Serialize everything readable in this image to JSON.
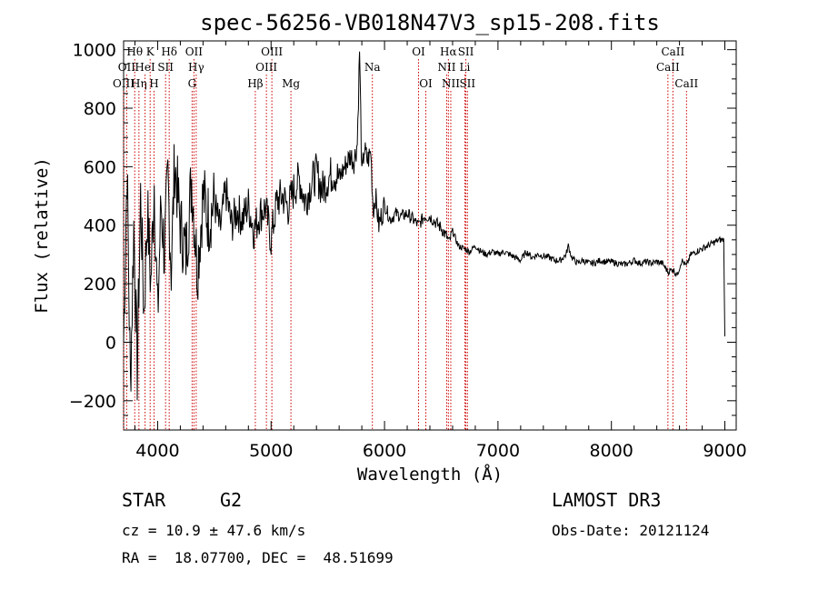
{
  "chart_data": {
    "type": "line",
    "title": "spec-56256-VB018N47V3_sp15-208.fits",
    "xlabel": "Wavelength (Å)",
    "ylabel": "Flux (relative)",
    "xlim": [
      3700,
      9100
    ],
    "ylim": [
      -300,
      1030
    ],
    "x_ticks": [
      4000,
      5000,
      6000,
      7000,
      8000,
      9000
    ],
    "y_ticks": [
      -200,
      0,
      200,
      400,
      600,
      800,
      1000
    ],
    "x_tick_labels": [
      "4000",
      "5000",
      "6000",
      "7000",
      "8000",
      "9000"
    ],
    "y_tick_labels": [
      "−200",
      "0",
      "200",
      "400",
      "600",
      "800",
      "1000"
    ],
    "line_color": "#000000",
    "marker_color": "#cc0000",
    "series": [
      {
        "name": "spectrum",
        "x": [
          3700,
          3730,
          3760,
          3790,
          3820,
          3850,
          3880,
          3910,
          3940,
          3970,
          4000,
          4030,
          4060,
          4090,
          4120,
          4150,
          4200,
          4250,
          4300,
          4350,
          4400,
          4450,
          4500,
          4550,
          4600,
          4650,
          4700,
          4750,
          4800,
          4850,
          4900,
          4950,
          5000,
          5050,
          5100,
          5150,
          5200,
          5250,
          5300,
          5350,
          5400,
          5450,
          5500,
          5550,
          5600,
          5650,
          5700,
          5730,
          5760,
          5780,
          5800,
          5820,
          5850,
          5880,
          5900,
          5920,
          5950,
          6000,
          6050,
          6100,
          6150,
          6200,
          6250,
          6300,
          6350,
          6400,
          6450,
          6500,
          6550,
          6570,
          6600,
          6650,
          6700,
          6750,
          6800,
          6850,
          6900,
          6950,
          7000,
          7050,
          7100,
          7150,
          7200,
          7250,
          7300,
          7350,
          7400,
          7450,
          7500,
          7550,
          7600,
          7620,
          7650,
          7700,
          7750,
          7800,
          7850,
          7900,
          7950,
          8000,
          8050,
          8100,
          8150,
          8200,
          8250,
          8300,
          8350,
          8400,
          8450,
          8500,
          8540,
          8580,
          8620,
          8660,
          8700,
          8750,
          8800,
          8850,
          8900,
          8950,
          8990,
          9000
        ],
        "y": [
          0,
          600,
          -150,
          400,
          -100,
          500,
          100,
          450,
          200,
          550,
          80,
          480,
          300,
          560,
          250,
          620,
          400,
          300,
          560,
          250,
          500,
          420,
          480,
          380,
          520,
          400,
          450,
          420,
          470,
          380,
          440,
          460,
          350,
          480,
          500,
          460,
          520,
          560,
          480,
          540,
          580,
          520,
          560,
          580,
          560,
          600,
          640,
          620,
          680,
          1000,
          560,
          660,
          620,
          650,
          450,
          500,
          400,
          470,
          420,
          440,
          430,
          440,
          420,
          400,
          430,
          430,
          410,
          390,
          360,
          340,
          380,
          330,
          320,
          310,
          330,
          310,
          300,
          310,
          300,
          310,
          300,
          290,
          280,
          310,
          290,
          300,
          295,
          290,
          280,
          280,
          300,
          330,
          290,
          270,
          280,
          270,
          270,
          280,
          275,
          275,
          270,
          265,
          270,
          280,
          270,
          275,
          270,
          275,
          270,
          240,
          250,
          230,
          280,
          260,
          300,
          310,
          320,
          330,
          340,
          350,
          350,
          20
        ]
      }
    ],
    "lines_top": [
      {
        "label": "Hθ",
        "wave": 3798
      },
      {
        "label": "K",
        "wave": 3934
      },
      {
        "label": "Hδ",
        "wave": 4102
      },
      {
        "label": "OII",
        "wave": 4320
      },
      {
        "label": "OIII",
        "wave": 5007
      },
      {
        "label": "OI",
        "wave": 6300
      },
      {
        "label": "Hα",
        "wave": 6563
      },
      {
        "label": "SII",
        "wave": 6717
      },
      {
        "label": "CaII",
        "wave": 8542
      }
    ],
    "lines_mid": [
      {
        "label": "OII",
        "wave": 3727
      },
      {
        "label": "HeI",
        "wave": 3889
      },
      {
        "label": "SII",
        "wave": 4070
      },
      {
        "label": "Hγ",
        "wave": 4340
      },
      {
        "label": "OIII",
        "wave": 4959
      },
      {
        "label": "Na",
        "wave": 5893
      },
      {
        "label": "NII",
        "wave": 6548
      },
      {
        "label": "Li",
        "wave": 6708
      },
      {
        "label": "CaII",
        "wave": 8498
      }
    ],
    "lines_low": [
      {
        "label": "OIII",
        "wave": 3700
      },
      {
        "label": "Hη",
        "wave": 3835
      },
      {
        "label": "H",
        "wave": 3968
      },
      {
        "label": "G",
        "wave": 4304
      },
      {
        "label": "Hβ",
        "wave": 4861
      },
      {
        "label": "Mg",
        "wave": 5175
      },
      {
        "label": "OI",
        "wave": 6364
      },
      {
        "label": "NII",
        "wave": 6584
      },
      {
        "label": "SII",
        "wave": 6731
      },
      {
        "label": "CaII",
        "wave": 8662
      }
    ]
  },
  "info": {
    "object_class": "STAR",
    "subclass": "G2",
    "survey": "LAMOST DR3",
    "redshift": "cz = 10.9 ± 47.6 km/s",
    "obs_date": "Obs-Date: 20121124",
    "coords": "RA =  18.07700, DEC =  48.51699"
  }
}
